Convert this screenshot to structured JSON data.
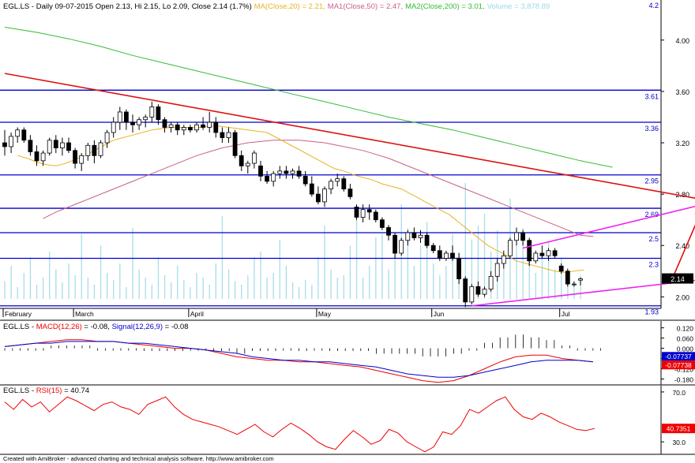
{
  "header": {
    "main": "EGL.LS - Daily 09-07-2015 Open 2.13, Hi 2.15, Lo 2.09, Close 2.14 (1.7%)",
    "ma20": "MA(Close,20) = 2.21,",
    "ma50": "MA1(Close,50) = 2.47,",
    "ma200": "MA2(Close,200) = 3.01,",
    "volume": "Volume = 3,878.89"
  },
  "footer": "Created with AmiBroker - advanced charting and technical analysis software. http://www.amibroker.com",
  "colors": {
    "ma20": "#e6b422",
    "ma50": "#c9608a",
    "ma200": "#33bb33",
    "trend": "#dd1111",
    "channel": "#ee22ee",
    "hline": "#0000cc",
    "volume": "#a8dcea",
    "macd": "#0000cc",
    "signal": "#ee0000",
    "rsi": "#ee0000"
  },
  "chart_data": [
    {
      "type": "candlestick",
      "title": "EGL.LS - Daily",
      "x_labels": [
        "February",
        "March",
        "April",
        "May",
        "Jun",
        "Jul"
      ],
      "y_ticks": [
        2.0,
        2.4,
        2.8,
        3.2,
        3.6,
        4.0
      ],
      "ylim": [
        1.91,
        4.22
      ],
      "top_value": "4.2",
      "price_tag": "2.14",
      "levels": [
        {
          "label": "3.61",
          "value": 3.61
        },
        {
          "label": "3.36",
          "value": 3.36
        },
        {
          "label": "2.95",
          "value": 2.95
        },
        {
          "label": "2.69",
          "value": 2.69
        },
        {
          "label": "2.5",
          "value": 2.5
        },
        {
          "label": "2.3",
          "value": 2.3
        },
        {
          "label": "1.93",
          "value": 1.93
        }
      ],
      "candles": [
        [
          3.2,
          3.3,
          3.1,
          3.17
        ],
        [
          3.17,
          3.28,
          3.12,
          3.25
        ],
        [
          3.25,
          3.32,
          3.2,
          3.3
        ],
        [
          3.3,
          3.32,
          3.2,
          3.22
        ],
        [
          3.22,
          3.26,
          3.1,
          3.13
        ],
        [
          3.13,
          3.18,
          3.02,
          3.06
        ],
        [
          3.06,
          3.14,
          3.02,
          3.12
        ],
        [
          3.12,
          3.24,
          3.1,
          3.22
        ],
        [
          3.22,
          3.26,
          3.12,
          3.16
        ],
        [
          3.16,
          3.24,
          3.1,
          3.2
        ],
        [
          3.2,
          3.24,
          3.12,
          3.14
        ],
        [
          3.14,
          3.16,
          3.0,
          3.04
        ],
        [
          3.04,
          3.12,
          2.98,
          3.1
        ],
        [
          3.1,
          3.2,
          3.06,
          3.18
        ],
        [
          3.18,
          3.22,
          3.04,
          3.1
        ],
        [
          3.1,
          3.22,
          3.08,
          3.2
        ],
        [
          3.2,
          3.3,
          3.16,
          3.28
        ],
        [
          3.28,
          3.4,
          3.24,
          3.36
        ],
        [
          3.36,
          3.48,
          3.3,
          3.44
        ],
        [
          3.44,
          3.46,
          3.3,
          3.36
        ],
        [
          3.36,
          3.42,
          3.28,
          3.34
        ],
        [
          3.34,
          3.4,
          3.3,
          3.38
        ],
        [
          3.38,
          3.42,
          3.32,
          3.4
        ],
        [
          3.4,
          3.52,
          3.36,
          3.48
        ],
        [
          3.48,
          3.5,
          3.34,
          3.38
        ],
        [
          3.38,
          3.4,
          3.28,
          3.32
        ],
        [
          3.32,
          3.36,
          3.28,
          3.34
        ],
        [
          3.34,
          3.36,
          3.26,
          3.3
        ],
        [
          3.3,
          3.34,
          3.26,
          3.32
        ],
        [
          3.32,
          3.34,
          3.28,
          3.3
        ],
        [
          3.3,
          3.36,
          3.28,
          3.34
        ],
        [
          3.34,
          3.4,
          3.3,
          3.32
        ],
        [
          3.32,
          3.44,
          3.28,
          3.36
        ],
        [
          3.36,
          3.4,
          3.24,
          3.28
        ],
        [
          3.28,
          3.32,
          3.2,
          3.24
        ],
        [
          3.24,
          3.32,
          3.2,
          3.28
        ],
        [
          3.28,
          3.3,
          3.08,
          3.1
        ],
        [
          3.1,
          3.14,
          2.98,
          3.02
        ],
        [
          3.02,
          3.06,
          2.96,
          3.04
        ],
        [
          3.04,
          3.14,
          3.0,
          3.12
        ],
        [
          3.02,
          3.06,
          2.9,
          2.94
        ],
        [
          2.94,
          2.98,
          2.88,
          2.9
        ],
        [
          2.9,
          2.98,
          2.86,
          2.96
        ],
        [
          2.96,
          3.02,
          2.92,
          2.98
        ],
        [
          2.98,
          3.02,
          2.92,
          2.96
        ],
        [
          2.96,
          3.0,
          2.92,
          2.98
        ],
        [
          2.98,
          3.02,
          2.92,
          2.94
        ],
        [
          2.94,
          2.98,
          2.86,
          2.88
        ],
        [
          2.88,
          2.94,
          2.78,
          2.8
        ],
        [
          2.8,
          2.86,
          2.72,
          2.74
        ],
        [
          2.74,
          2.86,
          2.7,
          2.84
        ],
        [
          2.84,
          2.92,
          2.8,
          2.9
        ],
        [
          2.9,
          2.96,
          2.86,
          2.92
        ],
        [
          2.92,
          2.94,
          2.82,
          2.84
        ],
        [
          2.84,
          2.88,
          2.76,
          2.78
        ],
        [
          2.7,
          2.72,
          2.6,
          2.62
        ],
        [
          2.62,
          2.72,
          2.58,
          2.68
        ],
        [
          2.68,
          2.72,
          2.6,
          2.66
        ],
        [
          2.66,
          2.68,
          2.58,
          2.6
        ],
        [
          2.6,
          2.62,
          2.52,
          2.54
        ],
        [
          2.54,
          2.56,
          2.44,
          2.48
        ],
        [
          2.48,
          2.5,
          2.3,
          2.34
        ],
        [
          2.34,
          2.46,
          2.32,
          2.44
        ],
        [
          2.44,
          2.52,
          2.4,
          2.5
        ],
        [
          2.5,
          2.54,
          2.44,
          2.46
        ],
        [
          2.46,
          2.52,
          2.42,
          2.48
        ],
        [
          2.48,
          2.5,
          2.38,
          2.4
        ],
        [
          2.4,
          2.42,
          2.34,
          2.36
        ],
        [
          2.36,
          2.4,
          2.28,
          2.3
        ],
        [
          2.3,
          2.36,
          2.28,
          2.34
        ],
        [
          2.34,
          2.4,
          2.28,
          2.3
        ],
        [
          2.3,
          2.34,
          2.1,
          2.14
        ],
        [
          2.14,
          2.16,
          1.92,
          1.96
        ],
        [
          1.96,
          2.1,
          1.94,
          2.08
        ],
        [
          2.08,
          2.12,
          2.0,
          2.02
        ],
        [
          2.02,
          2.08,
          2.0,
          2.06
        ],
        [
          2.06,
          2.2,
          2.04,
          2.16
        ],
        [
          2.16,
          2.3,
          2.12,
          2.26
        ],
        [
          2.26,
          2.36,
          2.22,
          2.32
        ],
        [
          2.32,
          2.46,
          2.3,
          2.44
        ],
        [
          2.44,
          2.54,
          2.4,
          2.5
        ],
        [
          2.5,
          2.52,
          2.4,
          2.44
        ],
        [
          2.44,
          2.46,
          2.24,
          2.28
        ],
        [
          2.28,
          2.36,
          2.26,
          2.34
        ],
        [
          2.34,
          2.4,
          2.3,
          2.32
        ],
        [
          2.32,
          2.38,
          2.28,
          2.36
        ],
        [
          2.36,
          2.38,
          2.3,
          2.32
        ],
        [
          2.24,
          2.26,
          2.18,
          2.2
        ],
        [
          2.2,
          2.22,
          2.08,
          2.1
        ],
        [
          2.1,
          2.12,
          2.08,
          2.1
        ],
        [
          2.13,
          2.15,
          2.09,
          2.14
        ]
      ],
      "volume": [
        15,
        28,
        10,
        22,
        35,
        12,
        18,
        40,
        25,
        14,
        30,
        20,
        55,
        18,
        12,
        45,
        22,
        16,
        30,
        10,
        60,
        25,
        18,
        12,
        35,
        20,
        14,
        28,
        16,
        10,
        22,
        18,
        12,
        30,
        70,
        25,
        15,
        12,
        20,
        35,
        40,
        18,
        22,
        50,
        28,
        14,
        10,
        16,
        12,
        35,
        62,
        25,
        18,
        20,
        45,
        72,
        18,
        28,
        52,
        55,
        25,
        38,
        80,
        60,
        28,
        45,
        65,
        30,
        20,
        28,
        55,
        40,
        98,
        50,
        62,
        72,
        40,
        58,
        30,
        85,
        45,
        60,
        35,
        22,
        40,
        48,
        25,
        35,
        20,
        15,
        20
      ],
      "ma20": [
        3.1,
        3.08,
        3.05,
        3.03,
        3.02,
        3.04,
        3.07,
        3.1,
        3.14,
        3.18,
        3.22,
        3.24,
        3.26,
        3.28,
        3.3,
        3.31,
        3.32,
        3.32,
        3.32,
        3.32,
        3.33,
        3.33,
        3.32,
        3.31,
        3.3,
        3.29,
        3.28,
        3.24,
        3.2,
        3.16,
        3.12,
        3.08,
        3.04,
        3.0,
        2.98,
        2.95,
        2.93,
        2.91,
        2.88,
        2.86,
        2.84,
        2.8,
        2.76,
        2.72,
        2.68,
        2.64,
        2.58,
        2.52,
        2.46,
        2.4,
        2.36,
        2.32,
        2.28,
        2.26,
        2.24,
        2.22,
        2.2,
        2.19,
        2.2,
        2.21
      ],
      "ma50": [
        2.61,
        2.66,
        2.7,
        2.74,
        2.78,
        2.82,
        2.86,
        2.9,
        2.94,
        2.98,
        3.02,
        3.06,
        3.1,
        3.13,
        3.16,
        3.18,
        3.2,
        3.21,
        3.22,
        3.22,
        3.22,
        3.21,
        3.2,
        3.18,
        3.16,
        3.14,
        3.11,
        3.08,
        3.04,
        3.0,
        2.96,
        2.92,
        2.88,
        2.84,
        2.8,
        2.76,
        2.72,
        2.68,
        2.64,
        2.6,
        2.56,
        2.52,
        2.48,
        2.47
      ],
      "ma200": [
        4.1,
        4.06,
        4.01,
        3.95,
        3.88,
        3.82,
        3.76,
        3.7,
        3.64,
        3.58,
        3.52,
        3.46,
        3.4,
        3.35,
        3.3,
        3.24,
        3.18,
        3.12,
        3.06,
        3.01
      ],
      "trendlines": [
        {
          "color": "trend",
          "from": [
            0,
            3.74
          ],
          "to": [
            110,
            2.75
          ],
          "arrow": false
        },
        {
          "color": "channel",
          "from": [
            81,
            2.38
          ],
          "to": [
            110,
            2.73
          ],
          "arrow": false
        },
        {
          "color": "channel",
          "from": [
            73,
            1.93
          ],
          "to": [
            110,
            2.14
          ],
          "arrow": false
        },
        {
          "color": "trend",
          "from": [
            104,
            2.1
          ],
          "to": [
            109,
            2.68
          ],
          "arrow": true
        }
      ]
    },
    {
      "type": "line",
      "title": "EGL.LS - MACD(12,26) = -0.08, Signal(12,26,9) = -0.08",
      "label_prefix": "EGL.LS - ",
      "macd_label": "MACD(12,26)",
      "macd_value": " = -0.08, ",
      "signal_label": "Signal(12,26,9)",
      "signal_value": " = -0.08",
      "y_ticks": [
        "0.120",
        "0.060",
        "0.000",
        "-0.060",
        "-0.120",
        "-0.180"
      ],
      "ylim": [
        -0.215,
        0.16
      ],
      "tags": {
        "macd": "-0.07737",
        "signal": "-0.07738"
      },
      "series": [
        {
          "name": "MACD",
          "values": [
            0.01,
            0.02,
            0.03,
            0.04,
            0.05,
            0.05,
            0.04,
            0.04,
            0.03,
            0.02,
            0.01,
            0.0,
            0.0,
            -0.01,
            -0.03,
            -0.05,
            -0.06,
            -0.07,
            -0.07,
            -0.08,
            -0.08,
            -0.09,
            -0.1,
            -0.11,
            -0.13,
            -0.15,
            -0.17,
            -0.19,
            -0.2,
            -0.19,
            -0.16,
            -0.12,
            -0.08,
            -0.05,
            -0.04,
            -0.04,
            -0.06,
            -0.07,
            -0.08
          ]
        },
        {
          "name": "Signal",
          "values": [
            0.01,
            0.02,
            0.03,
            0.03,
            0.04,
            0.04,
            0.04,
            0.04,
            0.03,
            0.03,
            0.02,
            0.01,
            0.0,
            -0.01,
            -0.02,
            -0.03,
            -0.05,
            -0.06,
            -0.07,
            -0.07,
            -0.08,
            -0.08,
            -0.09,
            -0.1,
            -0.11,
            -0.13,
            -0.15,
            -0.16,
            -0.17,
            -0.17,
            -0.16,
            -0.14,
            -0.12,
            -0.1,
            -0.08,
            -0.07,
            -0.07,
            -0.07,
            -0.08
          ]
        }
      ],
      "histogram": [
        0,
        0,
        0,
        0.01,
        0.01,
        0.01,
        0,
        0,
        0,
        -0.01,
        -0.01,
        -0.01,
        0,
        0,
        -0.01,
        -0.02,
        -0.01,
        -0.01,
        0,
        -0.01,
        0,
        -0.01,
        -0.01,
        -0.01,
        -0.02,
        -0.02,
        -0.02,
        -0.03,
        -0.03,
        -0.02,
        0,
        0.02,
        0.04,
        0.05,
        0.04,
        0.03,
        0.01,
        0,
        0
      ]
    },
    {
      "type": "line",
      "title": "EGL.LS - RSI(15) = 40.74",
      "label_prefix": "EGL.LS - ",
      "rsi_label": "RSI(15)",
      "rsi_value": " = 40.74",
      "y_ticks": [
        "70.0",
        "30.0"
      ],
      "ylim": [
        20,
        75
      ],
      "tag": "40.7351",
      "series": [
        {
          "name": "RSI",
          "values": [
            62,
            56,
            64,
            58,
            62,
            54,
            60,
            66,
            63,
            59,
            55,
            60,
            62,
            58,
            56,
            52,
            60,
            63,
            66,
            58,
            52,
            48,
            46,
            44,
            42,
            39,
            36,
            40,
            44,
            38,
            34,
            40,
            45,
            41,
            36,
            30,
            26,
            24,
            32,
            39,
            34,
            28,
            31,
            40,
            37,
            30,
            26,
            22,
            26,
            38,
            36,
            43,
            56,
            53,
            58,
            63,
            66,
            56,
            50,
            48,
            53,
            50,
            46,
            43,
            40,
            39,
            40.74
          ]
        }
      ]
    }
  ]
}
